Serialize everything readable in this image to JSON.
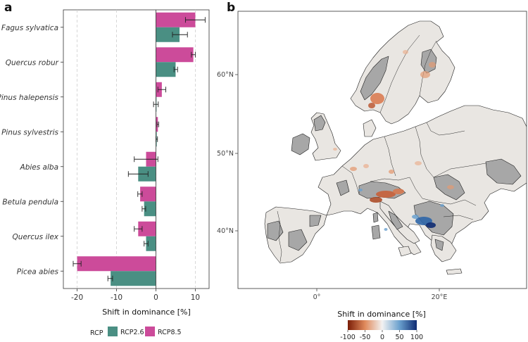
{
  "panel_a_letter": "a",
  "panel_b_letter": "b",
  "chart_data": [
    {
      "type": "bar",
      "orientation": "horizontal",
      "categories": [
        "Fagus sylvatica",
        "Quercus robur",
        "Pinus halepensis",
        "Pinus sylvestris",
        "Abies alba",
        "Betula pendula",
        "Quercus ilex",
        "Picea abies"
      ],
      "series": [
        {
          "name": "RCP2.6",
          "color": "#4a8f83",
          "values": [
            6,
            5,
            0,
            0.2,
            -4.5,
            -3,
            -2.5,
            -11.5
          ],
          "err_low": [
            4.2,
            4.6,
            -0.6,
            0.0,
            -7.0,
            -3.5,
            -3.0,
            -12.2
          ],
          "err_high": [
            8.0,
            5.5,
            0.6,
            0.4,
            -2.0,
            -2.6,
            -2.0,
            -11.0
          ]
        },
        {
          "name": "RCP8.5",
          "color": "#cc4b9a",
          "values": [
            10,
            9.5,
            1.5,
            0.5,
            -2.5,
            -4,
            -4.5,
            -20
          ],
          "err_low": [
            7.5,
            9.0,
            0.5,
            0.3,
            -5.5,
            -4.6,
            -5.5,
            -21.0
          ],
          "err_high": [
            12.5,
            10.0,
            2.5,
            0.7,
            0.5,
            -3.5,
            -3.5,
            -19.0
          ]
        }
      ],
      "xlabel": "Shift in dominance [%]",
      "xlim": [
        -23.5,
        13.5
      ],
      "xticks": [
        -20,
        -10,
        0,
        10
      ],
      "xtick_labels": [
        "-20",
        "-10",
        "0",
        "10"
      ],
      "grid": "vertical dashed",
      "legend": {
        "title": "RCP",
        "position": "bottom",
        "labels": [
          "RCP2.6",
          "RCP8.5"
        ]
      }
    },
    {
      "type": "heatmap",
      "subtype": "map",
      "region": "Europe",
      "lat_ticks": [
        "60°N",
        "50°N",
        "40°N"
      ],
      "lon_ticks": [
        "0°",
        "20°E"
      ],
      "colorbar": {
        "title": "Shift in dominance [%]",
        "labels": [
          "-100",
          "-50",
          "0",
          "50",
          "100"
        ],
        "range": [
          -100,
          100
        ],
        "colors": [
          "#7a1d07",
          "#e08a5c",
          "#f2f2f2",
          "#6aa0ce",
          "#0e2b72"
        ]
      }
    }
  ]
}
